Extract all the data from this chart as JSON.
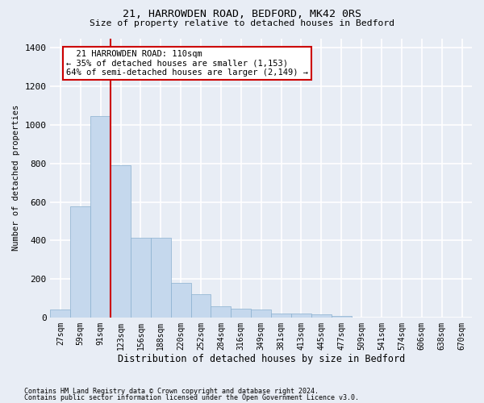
{
  "title1": "21, HARROWDEN ROAD, BEDFORD, MK42 0RS",
  "title2": "Size of property relative to detached houses in Bedford",
  "xlabel": "Distribution of detached houses by size in Bedford",
  "ylabel": "Number of detached properties",
  "bar_color": "#c5d8ed",
  "bar_edge_color": "#8ab0d0",
  "bins": [
    "27sqm",
    "59sqm",
    "91sqm",
    "123sqm",
    "156sqm",
    "188sqm",
    "220sqm",
    "252sqm",
    "284sqm",
    "316sqm",
    "349sqm",
    "381sqm",
    "413sqm",
    "445sqm",
    "477sqm",
    "509sqm",
    "541sqm",
    "574sqm",
    "606sqm",
    "638sqm",
    "670sqm"
  ],
  "values": [
    40,
    575,
    1045,
    790,
    415,
    415,
    180,
    120,
    57,
    47,
    40,
    22,
    22,
    15,
    8,
    0,
    0,
    0,
    0,
    0,
    0
  ],
  "vline_color": "#cc0000",
  "vline_x_idx": 2.5,
  "annotation_text": "  21 HARROWDEN ROAD: 110sqm\n← 35% of detached houses are smaller (1,153)\n64% of semi-detached houses are larger (2,149) →",
  "ylim": [
    0,
    1450
  ],
  "yticks": [
    0,
    200,
    400,
    600,
    800,
    1000,
    1200,
    1400
  ],
  "footer1": "Contains HM Land Registry data © Crown copyright and database right 2024.",
  "footer2": "Contains public sector information licensed under the Open Government Licence v3.0.",
  "bg_color": "#e8edf5",
  "grid_color": "#ffffff"
}
